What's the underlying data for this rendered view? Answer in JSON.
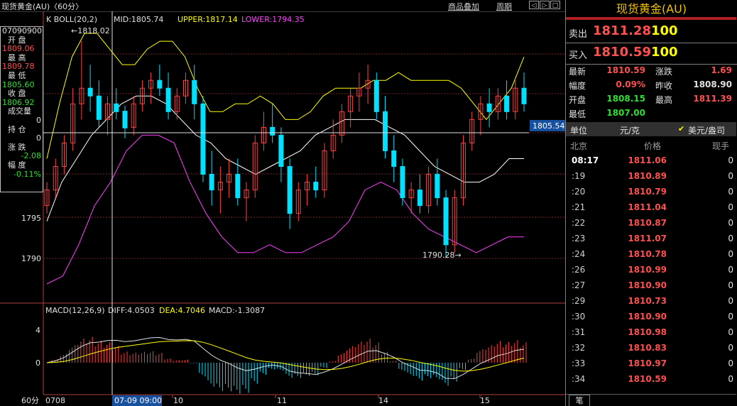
{
  "topbar": {
    "title": "现货黄金(AU)〈60分〉",
    "links": [
      "商品叠加",
      "周期"
    ],
    "window_buttons": [
      "◁",
      "▷",
      "□",
      "≡"
    ]
  },
  "indicator_boll": {
    "label": "K  BOLL(20,2)",
    "mid": "MID:1805.74",
    "upper": "UPPER:1817.14",
    "lower": "LOWER:1794.35",
    "colors": {
      "mid": "#ffffff",
      "upper": "#ffff00",
      "lower": "#ff40ff"
    }
  },
  "indicator_macd": {
    "label": "MACD(12,26,9)",
    "diff": "DIFF:4.0503",
    "dea": "DEA:4.7046",
    "macd": "MACD:-1.3087"
  },
  "left_info": {
    "date": "07090900",
    "rows": [
      {
        "label": "开  盘",
        "value": "1809.06",
        "color": "red"
      },
      {
        "label": "最  高",
        "value": "1809.78",
        "color": "red"
      },
      {
        "label": "最  低",
        "value": "1805.60",
        "color": "green"
      },
      {
        "label": "收  盘",
        "value": "1806.92",
        "color": "green"
      },
      {
        "label": "成交量",
        "value": "0",
        "color": "white"
      },
      {
        "label": "持  仓",
        "value": "0",
        "color": "white"
      },
      {
        "label": "涨  跌",
        "value": "-2.08",
        "color": "green"
      },
      {
        "label": "幅  度",
        "value": "-0.11%",
        "color": "green"
      }
    ]
  },
  "price_axis": {
    "labels": [
      "1795",
      "1790"
    ],
    "current": "1805.54",
    "zero_label": "0"
  },
  "macd_axis": {
    "labels": [
      "4",
      "0"
    ]
  },
  "annotations": {
    "high": "1818.02",
    "low": "1790.28"
  },
  "time_axis": {
    "period": "60分",
    "labels": [
      "0708",
      "10",
      "11",
      "14",
      "15"
    ],
    "cursor": "07-09 09:00"
  },
  "chart_data": {
    "type": "candlestick",
    "price_range": [
      1786,
      1820
    ],
    "candles": [
      [
        1797,
        1800,
        1796,
        1799
      ],
      [
        1799,
        1803,
        1798,
        1802
      ],
      [
        1802,
        1806,
        1801,
        1805
      ],
      [
        1805,
        1812,
        1804,
        1810
      ],
      [
        1810,
        1818.02,
        1808,
        1812
      ],
      [
        1812,
        1815,
        1809,
        1811
      ],
      [
        1811,
        1813,
        1807,
        1808
      ],
      [
        1808,
        1811,
        1806,
        1810
      ],
      [
        1810,
        1812,
        1808,
        1809
      ],
      [
        1809.06,
        1809.78,
        1805.6,
        1806.92
      ],
      [
        1807,
        1811,
        1806,
        1810
      ],
      [
        1810,
        1813,
        1809,
        1812
      ],
      [
        1812,
        1814,
        1810,
        1813
      ],
      [
        1813,
        1815,
        1811,
        1812
      ],
      [
        1812,
        1814,
        1808,
        1809
      ],
      [
        1809,
        1812,
        1808,
        1811
      ],
      [
        1811,
        1814,
        1810,
        1813
      ],
      [
        1813,
        1815,
        1808,
        1810
      ],
      [
        1810,
        1811,
        1800,
        1801
      ],
      [
        1801,
        1804,
        1797,
        1799
      ],
      [
        1799,
        1802,
        1796,
        1800
      ],
      [
        1800,
        1803,
        1798,
        1801
      ],
      [
        1801,
        1803,
        1797,
        1798
      ],
      [
        1798,
        1800,
        1795,
        1799
      ],
      [
        1799,
        1806,
        1798,
        1805
      ],
      [
        1805,
        1809,
        1804,
        1807
      ],
      [
        1807,
        1810,
        1805,
        1806
      ],
      [
        1806,
        1807,
        1800,
        1802
      ],
      [
        1802,
        1803,
        1794,
        1796
      ],
      [
        1796,
        1800,
        1795,
        1799
      ],
      [
        1799,
        1801,
        1797,
        1800
      ],
      [
        1800,
        1802,
        1798,
        1799
      ],
      [
        1799,
        1805,
        1798,
        1804
      ],
      [
        1804,
        1808,
        1803,
        1806
      ],
      [
        1806,
        1810,
        1805,
        1809
      ],
      [
        1809,
        1812,
        1807,
        1811
      ],
      [
        1811,
        1814,
        1809,
        1812
      ],
      [
        1812,
        1815,
        1810,
        1813
      ],
      [
        1813,
        1814,
        1808,
        1809
      ],
      [
        1809,
        1811,
        1803,
        1804
      ],
      [
        1804,
        1806,
        1800,
        1802
      ],
      [
        1802,
        1803,
        1797,
        1798
      ],
      [
        1798,
        1800,
        1796,
        1799
      ],
      [
        1799,
        1801,
        1796,
        1797
      ],
      [
        1797,
        1802,
        1796,
        1801
      ],
      [
        1801,
        1803,
        1797,
        1798
      ],
      [
        1798,
        1799,
        1790.28,
        1792
      ],
      [
        1792,
        1799,
        1791,
        1798
      ],
      [
        1798,
        1806,
        1797,
        1805
      ],
      [
        1805,
        1809,
        1804,
        1808
      ],
      [
        1808,
        1811,
        1806,
        1810
      ],
      [
        1810,
        1812,
        1807,
        1809
      ],
      [
        1809,
        1812,
        1808,
        1811
      ],
      [
        1811,
        1813,
        1808,
        1809
      ],
      [
        1809,
        1813,
        1808,
        1812
      ],
      [
        1812,
        1814,
        1809,
        1810
      ]
    ],
    "boll_upper": [
      1803,
      1810,
      1816,
      1819,
      1819,
      1817,
      1815,
      1815,
      1817,
      1818,
      1818,
      1816,
      1812,
      1809,
      1809,
      1810,
      1810,
      1811,
      1810,
      1808,
      1808,
      1809,
      1811,
      1812,
      1812,
      1812,
      1813,
      1813,
      1814,
      1813,
      1813,
      1813,
      1813,
      1812,
      1810,
      1808,
      1810,
      1812,
      1816
    ],
    "boll_mid": [
      1795,
      1800,
      1803,
      1806,
      1808,
      1810,
      1811,
      1811,
      1810,
      1808,
      1806,
      1805,
      1803,
      1802,
      1801,
      1802,
      1803,
      1804,
      1806,
      1807,
      1808,
      1808,
      1808,
      1807,
      1806,
      1804,
      1802,
      1801,
      1800,
      1800,
      1801,
      1803,
      1803
    ],
    "boll_lower": [
      1787,
      1788,
      1792,
      1797,
      1800,
      1804,
      1806,
      1806,
      1805,
      1800,
      1796,
      1793,
      1791,
      1791,
      1792,
      1791,
      1791,
      1792,
      1793,
      1795,
      1799,
      1800,
      1799,
      1796,
      1794,
      1793,
      1792,
      1791,
      1792,
      1793,
      1793
    ]
  },
  "quote": {
    "title": "现货黄金(AU)",
    "sell": {
      "label": "卖出",
      "price": "1811.28",
      "vol": "100"
    },
    "buy": {
      "label": "买入",
      "price": "1810.59",
      "vol": "100"
    },
    "fields": [
      {
        "l1": "最新",
        "v1": "1810.59",
        "c1": "#ff5050",
        "l2": "涨跌",
        "v2": "1.69",
        "c2": "#ff5050"
      },
      {
        "l1": "幅度",
        "v1": "0.09%",
        "c1": "#ff5050",
        "l2": "昨收",
        "v2": "1808.90",
        "c2": "#e0e0e0"
      },
      {
        "l1": "开盘",
        "v1": "1808.15",
        "c1": "#30e030",
        "l2": "最高",
        "v2": "1811.39",
        "c2": "#ff5050"
      },
      {
        "l1": "最低",
        "v1": "1807.00",
        "c1": "#30e030",
        "l2": "",
        "v2": "",
        "c2": "#e0e0e0"
      }
    ],
    "unit_label": "单位",
    "unit_value": "元/克",
    "currency": "美元/盎司",
    "ticks_header": {
      "time": "北京",
      "price": "价格",
      "qty": "现手"
    },
    "ticks": [
      {
        "t": "08:17",
        "p": "1811.06",
        "q": "0"
      },
      {
        "t": ":19",
        "p": "1810.89",
        "q": "0"
      },
      {
        "t": ":20",
        "p": "1810.79",
        "q": "0"
      },
      {
        "t": ":21",
        "p": "1811.04",
        "q": "0"
      },
      {
        "t": ":22",
        "p": "1810.87",
        "q": "0"
      },
      {
        "t": ":23",
        "p": "1811.07",
        "q": "0"
      },
      {
        "t": ":24",
        "p": "1810.78",
        "q": "0"
      },
      {
        "t": ":26",
        "p": "1810.99",
        "q": "0"
      },
      {
        "t": ":27",
        "p": "1810.90",
        "q": "0"
      },
      {
        "t": ":29",
        "p": "1810.73",
        "q": "0"
      },
      {
        "t": ":30",
        "p": "1810.90",
        "q": "0"
      },
      {
        "t": ":31",
        "p": "1810.98",
        "q": "0"
      },
      {
        "t": ":32",
        "p": "1810.83",
        "q": "0"
      },
      {
        "t": ":33",
        "p": "1810.97",
        "q": "0"
      },
      {
        "t": ":34",
        "p": "1810.59",
        "q": "0"
      }
    ],
    "bottom_tab": "笔"
  }
}
